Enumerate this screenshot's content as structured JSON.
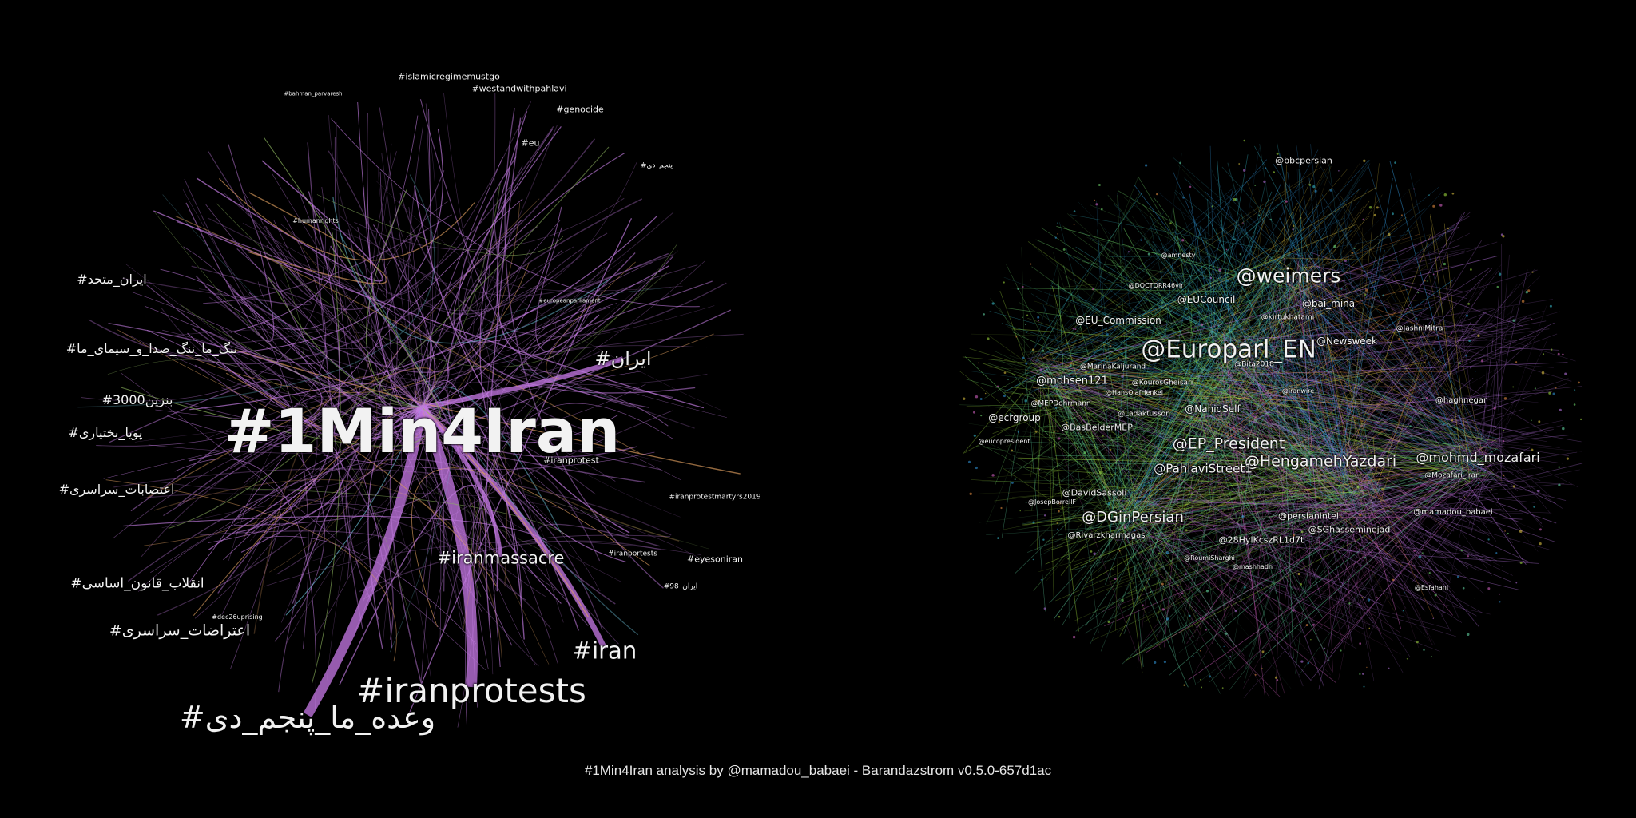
{
  "caption": "#1Min4Iran analysis by @mamadou_babaei - Barandazstrom v0.5.0-657d1ac",
  "hashtag_graph": {
    "hub": "#1Min4Iran",
    "edge_color": "#c879e8",
    "labels": [
      "#1Min4Iran",
      "#iranprotests",
      "#وعده_ما_پنجم_دی",
      "#iran",
      "#iranmassacre",
      "#ایران",
      "#اعتراضات_سراسری",
      "#انقلاب_قانون_اساسی",
      "#ایران_متحد",
      "#ننگ_ما_ننگ_صدا_و_سیمای_ما",
      "#بنزین3000",
      "#پویا_بختیاری",
      "#اعتصابات_سراسری",
      "#islamicregimemustgo",
      "#westandwithpahlavi",
      "#genocide",
      "#eu",
      "#iranprotest",
      "#eyesoniran",
      "#iranprotestmartyrs2019",
      "#iranportests",
      "#humanrights",
      "#europeanparliament",
      "#bahman_parvaresh",
      "#dec26uprising",
      "#ایران_98",
      "#پنجم_دی"
    ]
  },
  "mention_graph": {
    "labels": [
      "@Europarl_EN",
      "@weimers",
      "@HengamehYazdari",
      "@mohmd_mozafari",
      "@EP_President",
      "@DGinPersian",
      "@PahlaviStreet1",
      "@bbcpersian",
      "@bai_mina",
      "@Newsweek",
      "@EUCouncil",
      "@EU_Commission",
      "@mohsen121",
      "@NahidSelf",
      "@ecrgroup",
      "@BasBelderMEP",
      "@DavidSassoli",
      "@persianintel",
      "@SGhasseminejad",
      "@28HylKcszRL1d7t",
      "@mamadou_babaei",
      "@Mozafari_Iran",
      "@haghnegar",
      "@JashniMitra",
      "@kirtukhatami",
      "@Rivarzkharmagas",
      "@KourosGheisari",
      "@Ladaktusson",
      "@MarinaKaljurand",
      "@Bita2018",
      "@MEPDohrmann",
      "@eucopresident",
      "@JosepBorrellF",
      "@HansOlafHenkel",
      "@iranwire",
      "@DOCTORR46vir",
      "@amnesty",
      "@Esfahani",
      "@RoumiSharghi",
      "@mashhadn"
    ]
  }
}
